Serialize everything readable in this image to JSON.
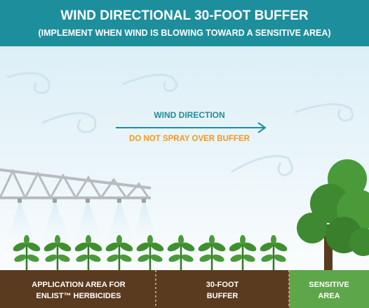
{
  "header": {
    "title": "WIND DIRECTIONAL 30-FOOT BUFFER",
    "subtitle": "(IMPLEMENT WHEN WIND IS BLOWING TOWARD A SENSITIVE AREA)"
  },
  "labels": {
    "wind_direction": "WIND DIRECTION",
    "no_spray": "DO NOT SPRAY OVER BUFFER"
  },
  "zones": [
    {
      "lines": [
        "APPLICATION AREA FOR",
        "ENLIST™ HERBICIDES"
      ]
    },
    {
      "lines": [
        "30-FOOT",
        "BUFFER"
      ]
    },
    {
      "lines": [
        "SENSITIVE",
        "AREA"
      ]
    }
  ]
}
